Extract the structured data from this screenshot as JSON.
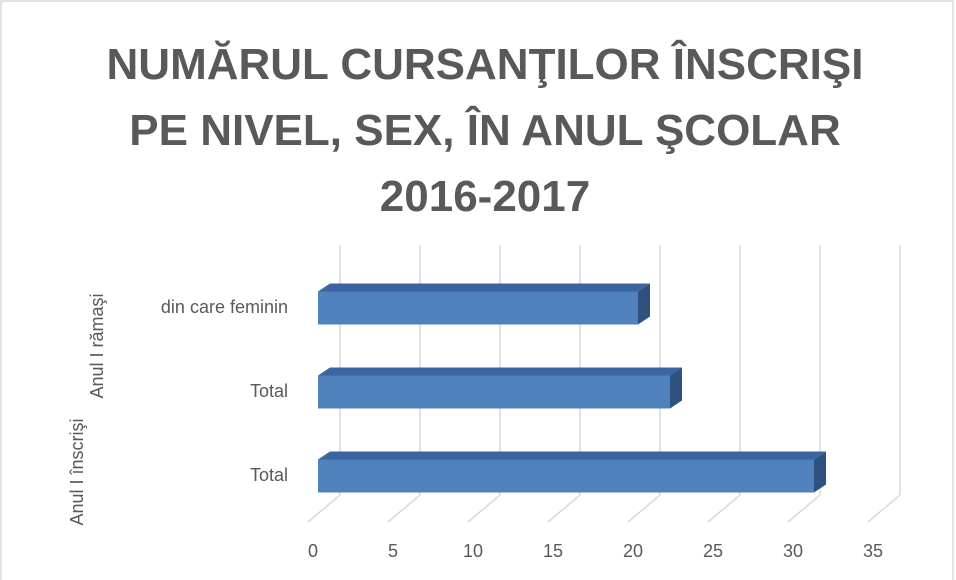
{
  "chart_data": {
    "type": "bar3d_horizontal",
    "title": "NUMĂRUL CURSANŢILOR ÎNSCRIŞI PE NIVEL,  SEX, ÎN ANUL ŞCOLAR 2016-2017",
    "categories": [
      "Total",
      "Total",
      "din care feminin"
    ],
    "category_groups": [
      {
        "label": "Anul I înscrişi",
        "count": 1
      },
      {
        "label": "Anul I rămaşi",
        "count": 2
      }
    ],
    "values": [
      31,
      22,
      20
    ],
    "color": "#4f81bd",
    "xlim": [
      0,
      35
    ],
    "xticks": [
      0,
      5,
      10,
      15,
      20,
      25,
      30,
      35
    ],
    "grid": true
  }
}
